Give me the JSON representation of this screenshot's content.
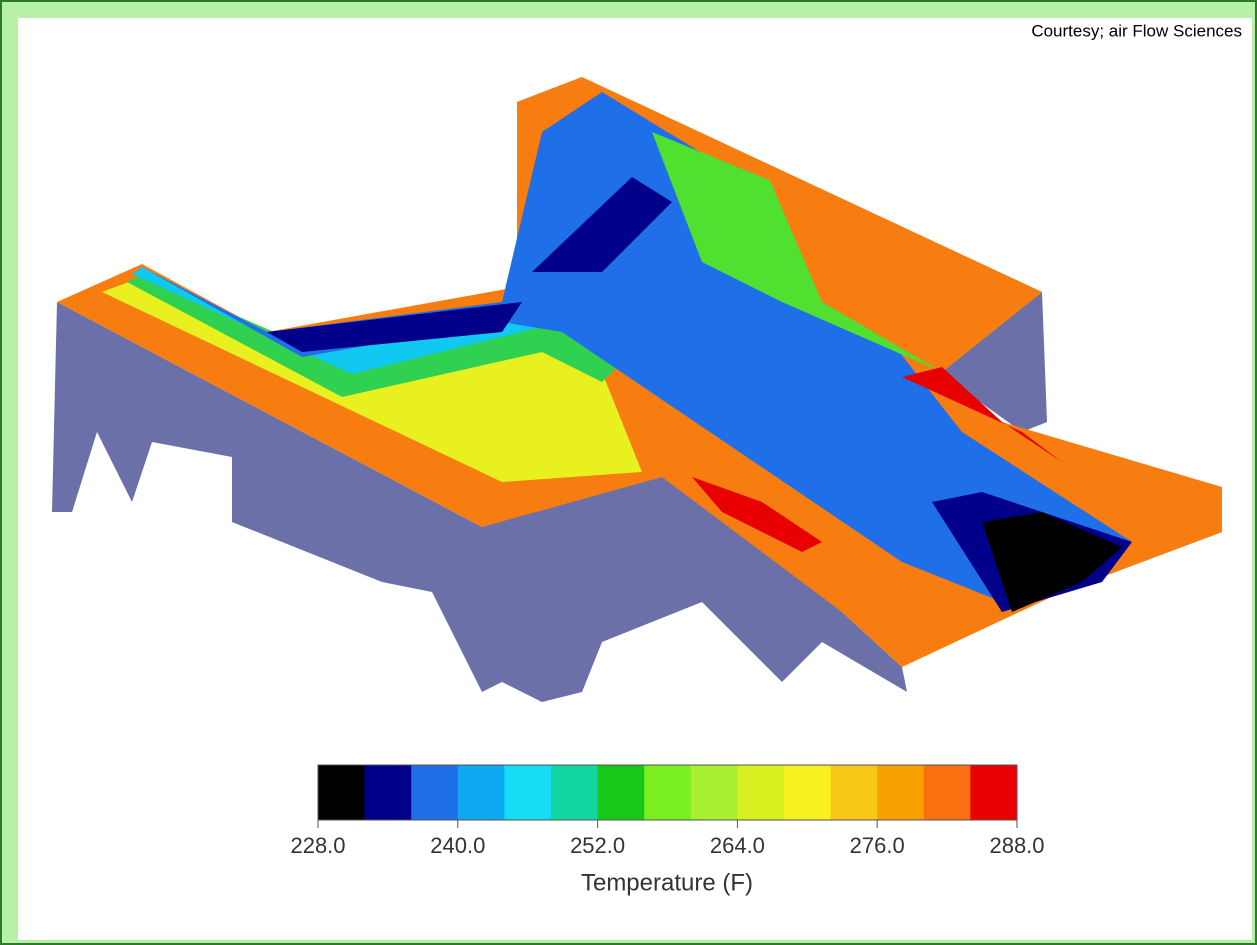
{
  "credit": "Courtesy; air Flow Sciences",
  "colorbar": {
    "title": "Temperature (F)",
    "ticks": [
      "228.0",
      "240.0",
      "252.0",
      "264.0",
      "276.0",
      "288.0"
    ],
    "colors": [
      "#000000",
      "#00008b",
      "#1f6fe8",
      "#10a8f0",
      "#16dcf5",
      "#12d6a0",
      "#18c818",
      "#7af020",
      "#a8f030",
      "#d8f020",
      "#f8f020",
      "#f8c818",
      "#f8a000",
      "#f87010",
      "#e80000"
    ]
  }
}
